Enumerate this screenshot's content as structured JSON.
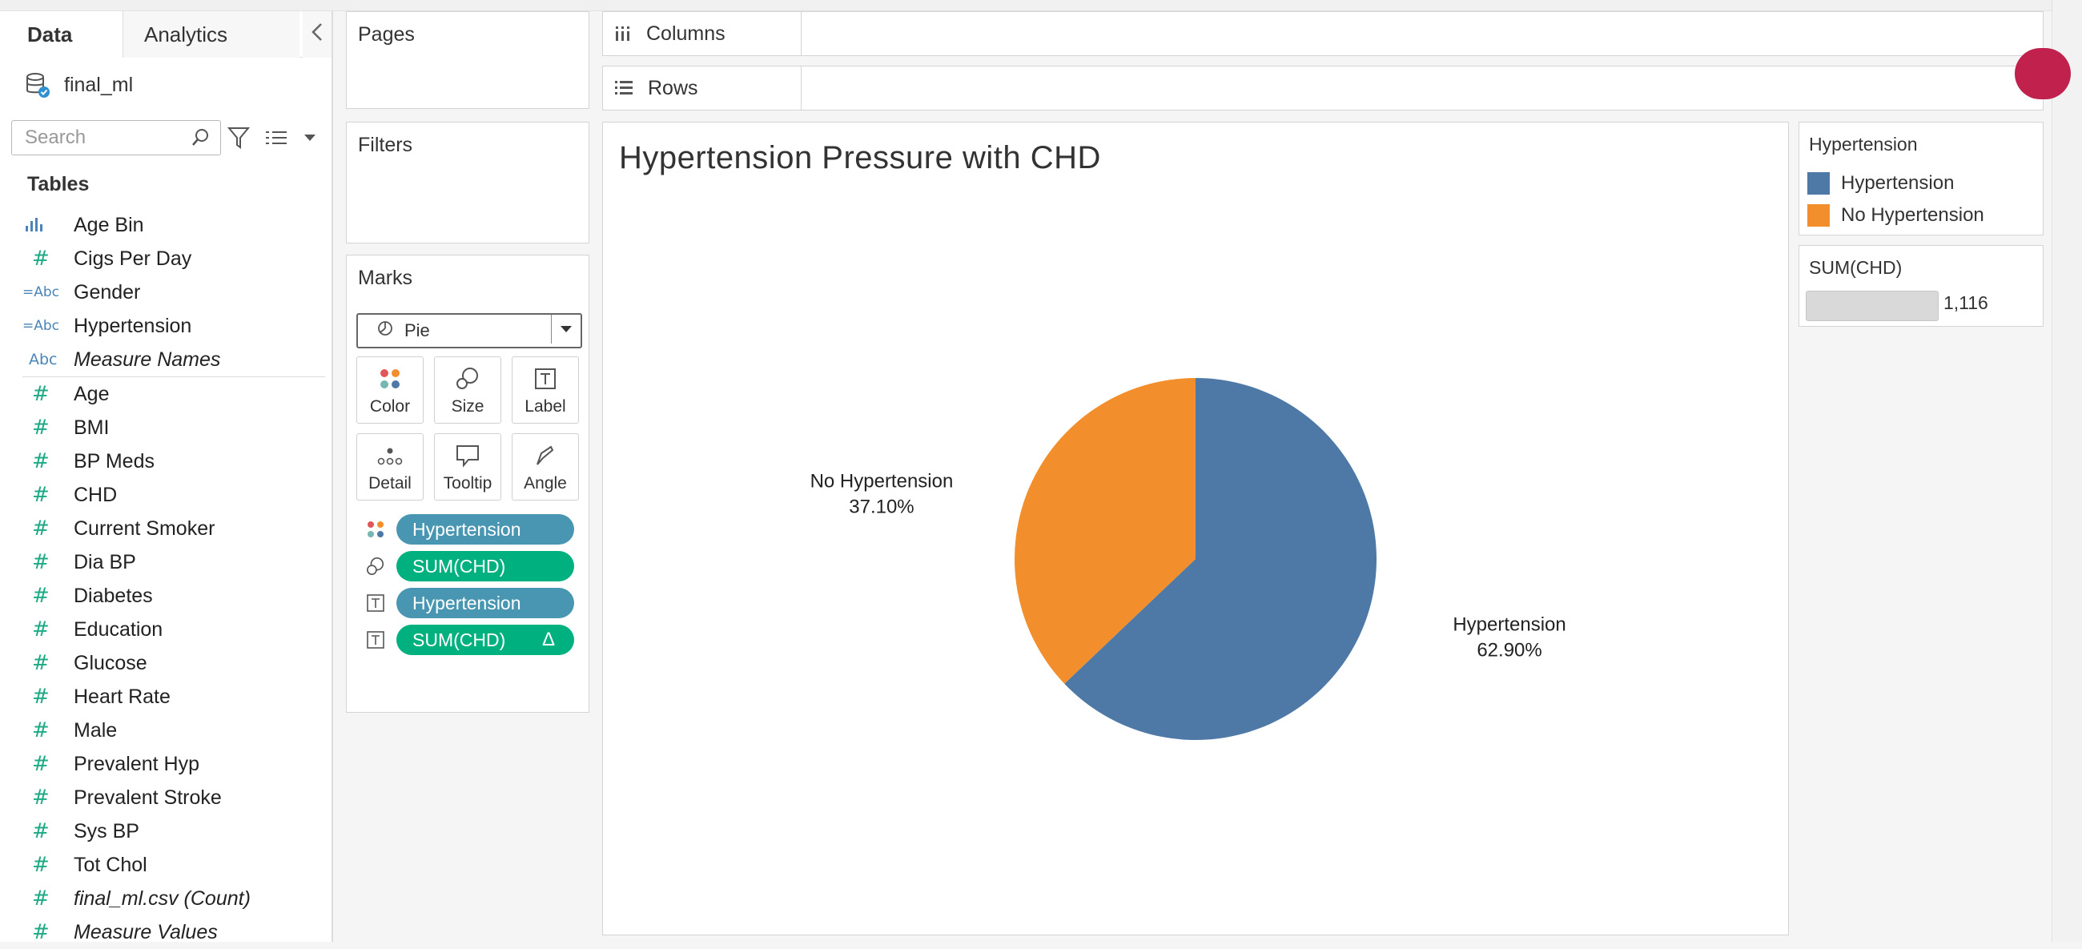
{
  "tabs": {
    "data": "Data",
    "analytics": "Analytics"
  },
  "datasource": {
    "name": "final_ml"
  },
  "search": {
    "placeholder": "Search"
  },
  "tables_header": "Tables",
  "fields": [
    {
      "icon": "bar",
      "name": "Age Bin"
    },
    {
      "icon": "hash",
      "name": "Cigs Per Day"
    },
    {
      "icon": "abc-eq",
      "name": "Gender"
    },
    {
      "icon": "abc-eq",
      "name": "Hypertension"
    },
    {
      "icon": "abc",
      "name": "Measure Names",
      "italic": true
    },
    {
      "icon": "hash",
      "name": "Age"
    },
    {
      "icon": "hash",
      "name": "BMI"
    },
    {
      "icon": "hash",
      "name": "BP Meds"
    },
    {
      "icon": "hash",
      "name": "CHD"
    },
    {
      "icon": "hash",
      "name": "Current Smoker"
    },
    {
      "icon": "hash",
      "name": "Dia BP"
    },
    {
      "icon": "hash",
      "name": "Diabetes"
    },
    {
      "icon": "hash",
      "name": "Education"
    },
    {
      "icon": "hash",
      "name": "Glucose"
    },
    {
      "icon": "hash",
      "name": "Heart Rate"
    },
    {
      "icon": "hash",
      "name": "Male"
    },
    {
      "icon": "hash",
      "name": "Prevalent Hyp"
    },
    {
      "icon": "hash",
      "name": "Prevalent Stroke"
    },
    {
      "icon": "hash",
      "name": "Sys BP"
    },
    {
      "icon": "hash",
      "name": "Tot Chol"
    },
    {
      "icon": "hash",
      "name": "final_ml.csv (Count)",
      "italic": true
    },
    {
      "icon": "hash",
      "name": "Measure Values",
      "italic": true
    }
  ],
  "shelves": {
    "pages": "Pages",
    "filters": "Filters",
    "marks": "Marks",
    "columns": "Columns",
    "rows": "Rows"
  },
  "marks": {
    "type": "Pie",
    "buttons": {
      "color": "Color",
      "size": "Size",
      "label": "Label",
      "detail": "Detail",
      "tooltip": "Tooltip",
      "angle": "Angle"
    },
    "pills": [
      {
        "encoding": "color",
        "label": "Hypertension",
        "kind": "dimension"
      },
      {
        "encoding": "size",
        "label": "SUM(CHD)",
        "kind": "measure"
      },
      {
        "encoding": "label",
        "label": "Hypertension",
        "kind": "dimension"
      },
      {
        "encoding": "label",
        "label": "SUM(CHD)",
        "kind": "measure",
        "delta": "Δ"
      }
    ]
  },
  "colors": {
    "hypertension": "#4e79a7",
    "no_hypertension": "#f28e2b"
  },
  "chart_data": {
    "type": "pie",
    "title": "Hypertension Pressure with CHD",
    "slices": [
      {
        "label": "Hypertension",
        "pct_label": "62.90%",
        "value": 62.9,
        "color": "#4e79a7"
      },
      {
        "label": "No Hypertension",
        "pct_label": "37.10%",
        "value": 37.1,
        "color": "#f28e2b"
      }
    ]
  },
  "legend": {
    "title": "Hypertension",
    "items": [
      {
        "label": "Hypertension",
        "color": "#4e79a7"
      },
      {
        "label": "No Hypertension",
        "color": "#f28e2b"
      }
    ]
  },
  "size_legend": {
    "title": "SUM(CHD)",
    "value": "1,116"
  }
}
